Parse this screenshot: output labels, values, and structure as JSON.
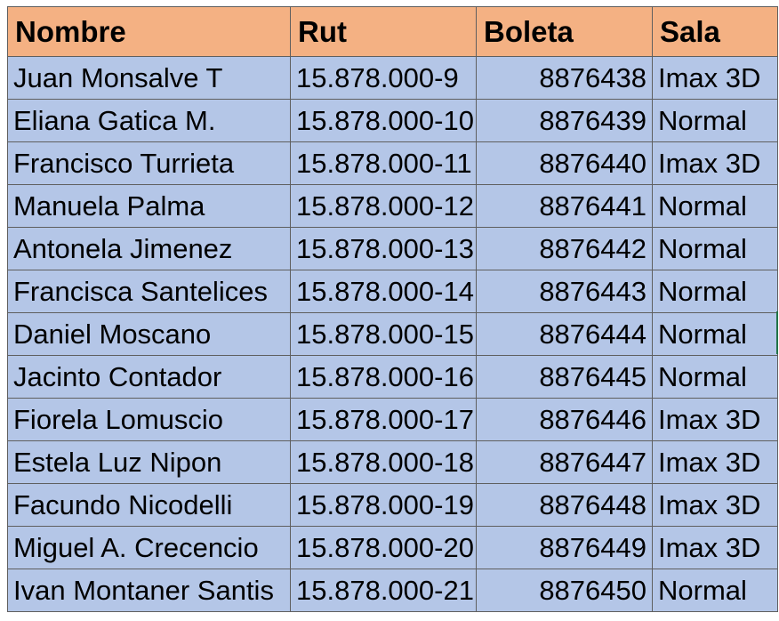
{
  "colors": {
    "header_fill": "#f4b183",
    "body_fill": "#b4c6e7",
    "grid": "#5f5f5f",
    "selection": "#217346"
  },
  "headers": [
    "Nombre",
    "Rut",
    "Boleta",
    "Sala"
  ],
  "rows": [
    [
      "Juan Monsalve T",
      "15.878.000-9",
      "8876438",
      "Imax 3D"
    ],
    [
      "Eliana Gatica M.",
      "15.878.000-10",
      "8876439",
      "Normal"
    ],
    [
      "Francisco Turrieta",
      "15.878.000-11",
      "8876440",
      "Imax 3D"
    ],
    [
      "Manuela Palma",
      "15.878.000-12",
      "8876441",
      "Normal"
    ],
    [
      "Antonela Jimenez",
      "15.878.000-13",
      "8876442",
      "Normal"
    ],
    [
      "Francisca Santelices",
      "15.878.000-14",
      "8876443",
      "Normal"
    ],
    [
      "Daniel Moscano",
      "15.878.000-15",
      "8876444",
      "Normal"
    ],
    [
      "Jacinto Contador",
      "15.878.000-16",
      "8876445",
      "Normal"
    ],
    [
      "Fiorela Lomuscio",
      "15.878.000-17",
      "8876446",
      "Imax 3D"
    ],
    [
      "Estela Luz Nipon",
      "15.878.000-18",
      "8876447",
      "Imax 3D"
    ],
    [
      "Facundo Nicodelli",
      "15.878.000-19",
      "8876448",
      "Imax 3D"
    ],
    [
      "Miguel A. Crecencio",
      "15.878.000-20",
      "8876449",
      "Imax 3D"
    ],
    [
      "Ivan Montaner Santis",
      "15.878.000-21",
      "8876450",
      "Normal"
    ]
  ]
}
